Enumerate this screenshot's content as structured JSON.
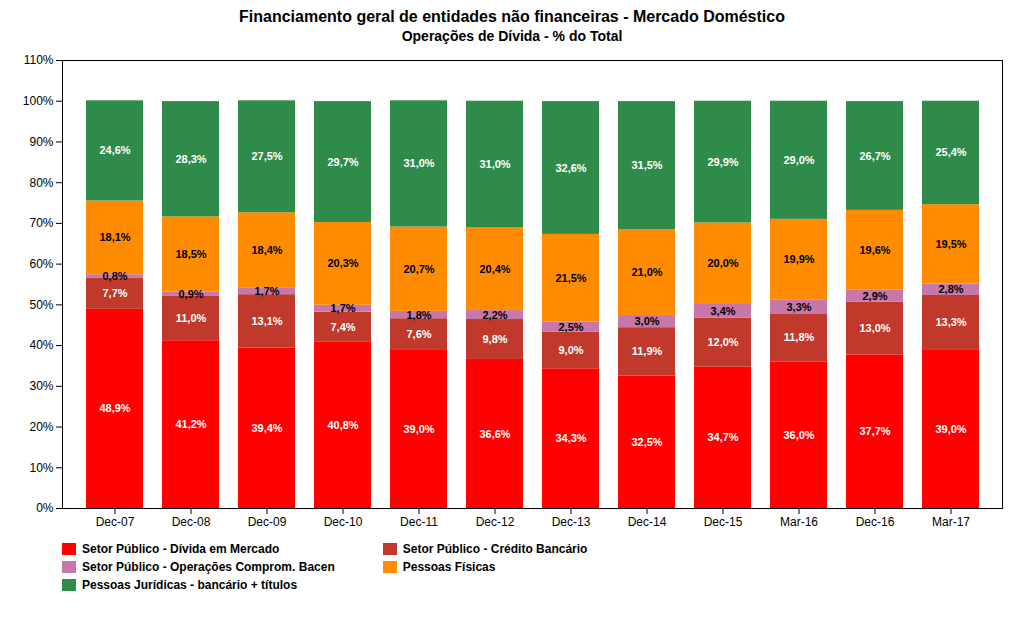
{
  "chart_data": {
    "type": "bar",
    "stacked": true,
    "title": "Financiamento geral de entidades não financeiras - Mercado Doméstico",
    "subtitle": "Operações de Dívida - % do Total",
    "categories": [
      "Dec-07",
      "Dec-08",
      "Dec-09",
      "Dec-10",
      "Dec-11",
      "Dec-12",
      "Dec-13",
      "Dec-14",
      "Dec-15",
      "Mar-16",
      "Dec-16",
      "Mar-17"
    ],
    "series": [
      {
        "name": "Setor Público - Dívida em Mercado",
        "color": "#FF0000",
        "values": [
          48.9,
          41.2,
          39.4,
          40.8,
          39.0,
          36.6,
          34.3,
          32.5,
          34.7,
          36.0,
          37.7,
          39.0
        ],
        "value_labels": [
          "48,9%",
          "41,2%",
          "39,4%",
          "40,8%",
          "39,0%",
          "36,6%",
          "34,3%",
          "32,5%",
          "34,7%",
          "36,0%",
          "37,7%",
          "39,0%"
        ]
      },
      {
        "name": "Setor Público - Crédito Bancário",
        "color": "#C0392B",
        "values": [
          7.7,
          11.0,
          13.1,
          7.4,
          7.6,
          9.8,
          9.0,
          11.9,
          12.0,
          11.8,
          13.0,
          13.3
        ],
        "value_labels": [
          "7,7%",
          "11,0%",
          "13,1%",
          "7,4%",
          "7,6%",
          "9,8%",
          "9,0%",
          "11,9%",
          "12,0%",
          "11,8%",
          "13,0%",
          "13,3%"
        ]
      },
      {
        "name": "Setor Público - Operações Comprom. Bacen",
        "color": "#C878A8",
        "values": [
          0.8,
          0.9,
          1.7,
          1.7,
          1.8,
          2.2,
          2.5,
          3.0,
          3.4,
          3.3,
          2.9,
          2.8
        ],
        "value_labels": [
          "0,8%",
          "0,9%",
          "1,7%",
          "1,7%",
          "1,8%",
          "2,2%",
          "2,5%",
          "3,0%",
          "3,4%",
          "3,3%",
          "2,9%",
          "2,8%"
        ]
      },
      {
        "name": "Pessoas Físicas",
        "color": "#FF8C00",
        "values": [
          18.1,
          18.5,
          18.4,
          20.3,
          20.7,
          20.4,
          21.5,
          21.0,
          20.0,
          19.9,
          19.6,
          19.5
        ],
        "value_labels": [
          "18,1%",
          "18,5%",
          "18,4%",
          "20,3%",
          "20,7%",
          "20,4%",
          "21,5%",
          "21,0%",
          "20,0%",
          "19,9%",
          "19,6%",
          "19,5%"
        ]
      },
      {
        "name": "Pessoas Jurídicas - bancário + títulos",
        "color": "#2E8B4A",
        "values": [
          24.6,
          28.3,
          27.5,
          29.7,
          31.0,
          31.0,
          32.6,
          31.5,
          29.9,
          29.0,
          26.7,
          25.4
        ],
        "value_labels": [
          "24,6%",
          "28,3%",
          "27,5%",
          "29,7%",
          "31,0%",
          "31,0%",
          "32,6%",
          "31,5%",
          "29,9%",
          "29,0%",
          "26,7%",
          "25,4%"
        ]
      }
    ],
    "ylim": [
      0,
      110
    ],
    "yticks": [
      {
        "value": 0,
        "label": "0%"
      },
      {
        "value": 10,
        "label": "10%"
      },
      {
        "value": 20,
        "label": "20%"
      },
      {
        "value": 30,
        "label": "30%"
      },
      {
        "value": 40,
        "label": "40%"
      },
      {
        "value": 50,
        "label": "50%"
      },
      {
        "value": 60,
        "label": "60%"
      },
      {
        "value": 70,
        "label": "70%"
      },
      {
        "value": 80,
        "label": "80%"
      },
      {
        "value": 90,
        "label": "90%"
      },
      {
        "value": 100,
        "label": "100%"
      },
      {
        "value": 110,
        "label": "110%"
      }
    ],
    "grid": false,
    "legend": "bottom",
    "data_labels": true
  }
}
